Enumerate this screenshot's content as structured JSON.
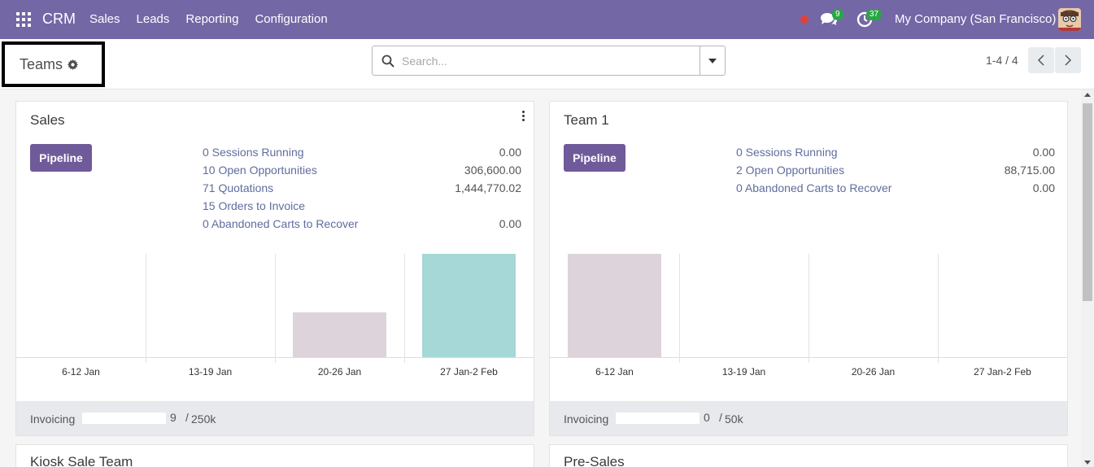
{
  "navbar": {
    "brand": "CRM",
    "menu": [
      "Sales",
      "Leads",
      "Reporting",
      "Configuration"
    ],
    "chat_count": "9",
    "activity_count": "37",
    "company": "My Company (San Francisco)"
  },
  "control": {
    "title": "Teams",
    "search_placeholder": "Search...",
    "pager": "1-4 / 4"
  },
  "colors": {
    "navbar": "#7467a6",
    "pipeline_button": "#6f5a9a",
    "bar_past": "#ddd3db",
    "bar_current": "#a5d8d7",
    "link": "#5f6d9d"
  },
  "teams": [
    {
      "name": "Sales",
      "pipeline_label": "Pipeline",
      "stats": [
        {
          "label": "0 Sessions Running",
          "value": "0.00"
        },
        {
          "label": "10 Open Opportunities",
          "value": "306,600.00"
        },
        {
          "label": "71 Quotations",
          "value": "1,444,770.02"
        },
        {
          "label": "15 Orders to Invoice",
          "value": ""
        },
        {
          "label": "0  Abandoned Carts to Recover",
          "value": "0.00"
        }
      ],
      "footer": {
        "label": "Invoicing",
        "amount": "9",
        "separator": "/",
        "target": "250k",
        "progress": 0.0
      }
    },
    {
      "name": "Team 1",
      "pipeline_label": "Pipeline",
      "stats": [
        {
          "label": "0 Sessions Running",
          "value": "0.00"
        },
        {
          "label": "2 Open Opportunities",
          "value": "88,715.00"
        },
        {
          "label": "0  Abandoned Carts to Recover",
          "value": "0.00"
        }
      ],
      "footer": {
        "label": "Invoicing",
        "amount": "0",
        "separator": "/",
        "target": "50k",
        "progress": 0.0
      }
    },
    {
      "name": "Kiosk Sale Team"
    },
    {
      "name": "Pre-Sales"
    }
  ],
  "chart_data": [
    {
      "type": "bar",
      "categories": [
        "6-12 Jan",
        "13-19 Jan",
        "20-26 Jan",
        "27 Jan-2 Feb"
      ],
      "values": [
        0,
        0,
        0.43,
        1.0
      ],
      "highlight_index": 3
    },
    {
      "type": "bar",
      "categories": [
        "6-12 Jan",
        "13-19 Jan",
        "20-26 Jan",
        "27 Jan-2 Feb"
      ],
      "values": [
        1.0,
        0,
        0,
        0
      ],
      "highlight_index": -1
    }
  ]
}
